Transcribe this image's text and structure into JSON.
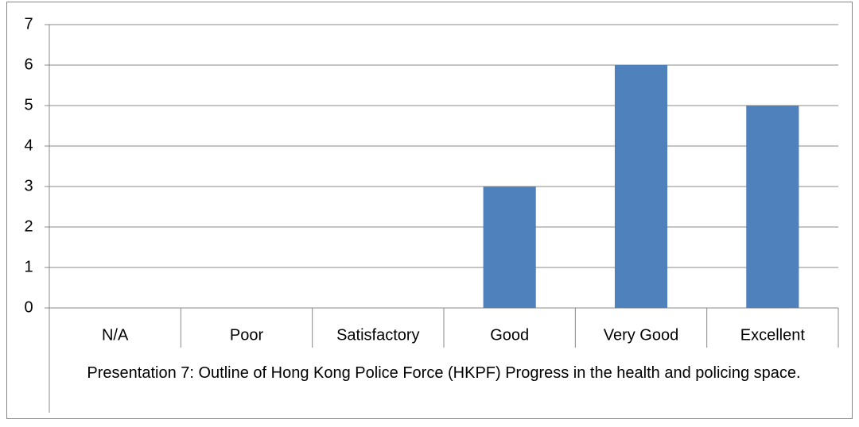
{
  "chart_data": {
    "type": "bar",
    "x_label": "Presentation 7: Outline of Hong Kong Police Force (HKPF) Progress in the health and policing space.",
    "categories": [
      "N/A",
      "Poor",
      "Satisfactory",
      "Good",
      "Very Good",
      "Excellent"
    ],
    "values": [
      0,
      0,
      0,
      3,
      6,
      5
    ],
    "color": "#4f81bd",
    "ylim": [
      0,
      7
    ],
    "yticks": [
      0,
      1,
      2,
      3,
      4,
      5,
      6,
      7
    ],
    "grid": true
  }
}
